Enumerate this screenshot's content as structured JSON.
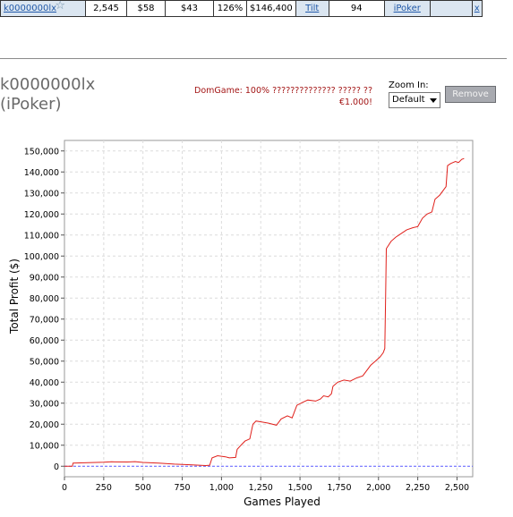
{
  "table_row": {
    "player": "k0000000lx",
    "star_icon": "star-icon",
    "cells": [
      "2,545",
      "$58",
      "$43",
      "126%",
      "$146,400"
    ],
    "tilt": "Tilt",
    "score": "94",
    "site": "iPoker",
    "close": "x"
  },
  "player_title": {
    "name": "k0000000lx",
    "site": "(iPoker)"
  },
  "note": {
    "line1": "DomGame: 100% ?????????????? ????? ??",
    "line2": "€1.000!"
  },
  "zoom": {
    "label": "Zoom In:",
    "selected": "Default",
    "remove_label": "Remove"
  },
  "colors": {
    "line": "#e0201b",
    "zero_line": "#5a5aff",
    "cell_blue": "#dbe6f1",
    "note_red": "#a31515"
  },
  "chart_data": {
    "type": "line",
    "xlabel": "Games Played",
    "ylabel": "Total Profit ($)",
    "xlim": [
      0,
      2600
    ],
    "ylim": [
      -5000,
      155000
    ],
    "xticks": [
      0,
      250,
      500,
      750,
      1000,
      1250,
      1500,
      1750,
      2000,
      2250,
      2500
    ],
    "xtick_labels": [
      "0",
      "250",
      "500",
      "750",
      "1,000",
      "1,250",
      "1,500",
      "1,750",
      "2,000",
      "2,250",
      "2,500"
    ],
    "yticks": [
      0,
      10000,
      20000,
      30000,
      40000,
      50000,
      60000,
      70000,
      80000,
      90000,
      100000,
      110000,
      120000,
      130000,
      140000,
      150000
    ],
    "ytick_labels": [
      "0",
      "10,000",
      "20,000",
      "30,000",
      "40,000",
      "50,000",
      "60,000",
      "70,000",
      "80,000",
      "90,000",
      "100,000",
      "110,000",
      "120,000",
      "130,000",
      "140,000",
      "150,000"
    ],
    "grid": true,
    "series": [
      {
        "points": [
          [
            0,
            0
          ],
          [
            50,
            0
          ],
          [
            55,
            1500
          ],
          [
            150,
            1700
          ],
          [
            250,
            1900
          ],
          [
            300,
            2100
          ],
          [
            400,
            2000
          ],
          [
            450,
            2200
          ],
          [
            500,
            1800
          ],
          [
            600,
            1500
          ],
          [
            700,
            1000
          ],
          [
            800,
            700
          ],
          [
            900,
            300
          ],
          [
            925,
            500
          ],
          [
            940,
            4000
          ],
          [
            975,
            5000
          ],
          [
            1025,
            4500
          ],
          [
            1050,
            4000
          ],
          [
            1090,
            4200
          ],
          [
            1100,
            8000
          ],
          [
            1130,
            10500
          ],
          [
            1150,
            12000
          ],
          [
            1180,
            13000
          ],
          [
            1200,
            20000
          ],
          [
            1220,
            21500
          ],
          [
            1260,
            21000
          ],
          [
            1300,
            20500
          ],
          [
            1350,
            19500
          ],
          [
            1380,
            22500
          ],
          [
            1420,
            24000
          ],
          [
            1450,
            23000
          ],
          [
            1480,
            29000
          ],
          [
            1520,
            30500
          ],
          [
            1550,
            31500
          ],
          [
            1600,
            31000
          ],
          [
            1630,
            32000
          ],
          [
            1650,
            33500
          ],
          [
            1680,
            33000
          ],
          [
            1700,
            34500
          ],
          [
            1710,
            38000
          ],
          [
            1740,
            40000
          ],
          [
            1780,
            41000
          ],
          [
            1820,
            40500
          ],
          [
            1860,
            42000
          ],
          [
            1900,
            43000
          ],
          [
            1950,
            48000
          ],
          [
            1980,
            50000
          ],
          [
            2010,
            52000
          ],
          [
            2030,
            54000
          ],
          [
            2040,
            56000
          ],
          [
            2045,
            80000
          ],
          [
            2050,
            103500
          ],
          [
            2080,
            107000
          ],
          [
            2110,
            109000
          ],
          [
            2150,
            111000
          ],
          [
            2180,
            112500
          ],
          [
            2220,
            113500
          ],
          [
            2250,
            114000
          ],
          [
            2280,
            118000
          ],
          [
            2310,
            120000
          ],
          [
            2340,
            121000
          ],
          [
            2360,
            127000
          ],
          [
            2390,
            129000
          ],
          [
            2420,
            132000
          ],
          [
            2430,
            133000
          ],
          [
            2440,
            143000
          ],
          [
            2460,
            144000
          ],
          [
            2490,
            145000
          ],
          [
            2510,
            144500
          ],
          [
            2530,
            146000
          ],
          [
            2545,
            146400
          ]
        ]
      }
    ]
  }
}
